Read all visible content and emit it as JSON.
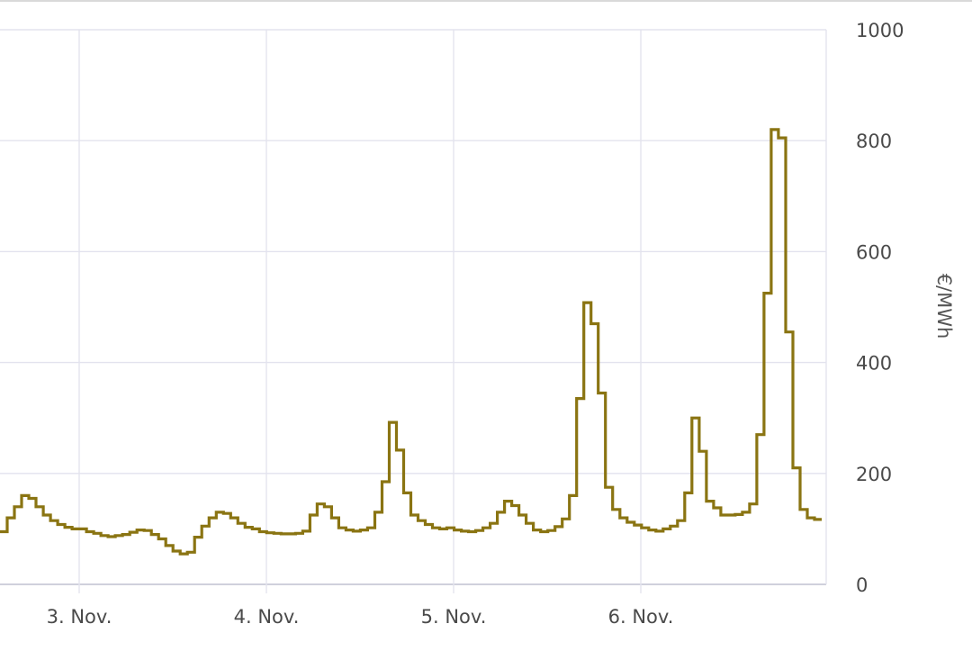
{
  "chart_data": {
    "type": "line",
    "step": true,
    "ylabel": "€/MWh",
    "ylim": [
      0,
      1000
    ],
    "yticks": [
      0,
      200,
      400,
      600,
      800,
      1000
    ],
    "xticks": [
      "3. Nov.",
      "4. Nov.",
      "5. Nov.",
      "6. Nov."
    ],
    "xlim": [
      2.0,
      6.99
    ],
    "grid": true,
    "axis_side": "right",
    "series": [
      {
        "color": "#8a7412",
        "values": [
          95,
          120,
          140,
          160,
          155,
          140,
          125,
          115,
          108,
          103,
          100,
          100,
          95,
          92,
          88,
          86,
          88,
          90,
          94,
          98,
          97,
          90,
          82,
          70,
          60,
          55,
          58,
          85,
          105,
          120,
          130,
          128,
          120,
          110,
          103,
          100,
          95,
          93,
          92,
          91,
          91,
          92,
          96,
          125,
          145,
          140,
          120,
          102,
          98,
          96,
          98,
          102,
          130,
          185,
          292,
          242,
          165,
          125,
          115,
          108,
          102,
          100,
          102,
          98,
          96,
          95,
          97,
          102,
          110,
          130,
          150,
          142,
          125,
          110,
          98,
          95,
          97,
          104,
          118,
          160,
          335,
          508,
          470,
          345,
          175,
          135,
          120,
          112,
          107,
          102,
          98,
          96,
          100,
          105,
          115,
          165,
          300,
          240,
          150,
          138,
          125,
          125,
          126,
          130,
          145,
          270,
          525,
          820,
          805,
          455,
          210,
          135,
          120,
          117
        ]
      }
    ]
  }
}
